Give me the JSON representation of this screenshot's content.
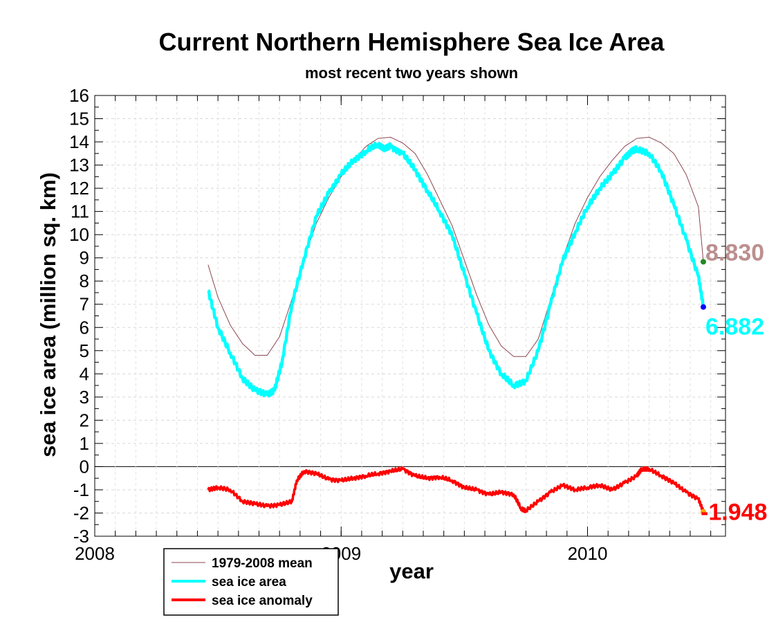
{
  "chart_data": {
    "type": "line",
    "title": "Current Northern Hemisphere Sea Ice Area",
    "subtitle": "most recent two years shown",
    "xlabel": "year",
    "ylabel": "sea ice area (million sq. km)",
    "xlim": [
      2008.0,
      2010.56
    ],
    "ylim": [
      -3,
      16
    ],
    "y_ticks": [
      -3,
      -2,
      -1,
      0,
      1,
      2,
      3,
      4,
      5,
      6,
      7,
      8,
      9,
      10,
      11,
      12,
      13,
      14,
      15,
      16
    ],
    "x_ticks": [
      {
        "value": 2008,
        "label": "2008"
      },
      {
        "value": 2009,
        "label": "2009"
      },
      {
        "value": 2010,
        "label": "2010"
      }
    ],
    "grid": true,
    "legend_position": "bottom-left",
    "series": [
      {
        "name": "1979-2008 mean",
        "color": "#8b4550",
        "x": [
          2008.46,
          2008.5,
          2008.55,
          2008.6,
          2008.65,
          2008.7,
          2008.75,
          2008.8,
          2008.85,
          2008.9,
          2008.95,
          2009.0,
          2009.05,
          2009.1,
          2009.15,
          2009.2,
          2009.25,
          2009.3,
          2009.35,
          2009.4,
          2009.45,
          2009.5,
          2009.55,
          2009.6,
          2009.65,
          2009.7,
          2009.75,
          2009.8,
          2009.85,
          2009.9,
          2009.95,
          2010.0,
          2010.05,
          2010.1,
          2010.15,
          2010.2,
          2010.25,
          2010.3,
          2010.35,
          2010.4,
          2010.45,
          2010.47
        ],
        "values": [
          8.7,
          7.3,
          6.1,
          5.3,
          4.8,
          4.8,
          5.6,
          7.2,
          9.0,
          10.5,
          11.6,
          12.5,
          13.2,
          13.8,
          14.15,
          14.2,
          13.95,
          13.5,
          12.6,
          11.5,
          10.4,
          8.9,
          7.4,
          6.1,
          5.2,
          4.75,
          4.75,
          5.5,
          7.2,
          9.0,
          10.5,
          11.6,
          12.5,
          13.2,
          13.8,
          14.15,
          14.2,
          13.95,
          13.5,
          12.6,
          11.2,
          8.83
        ]
      },
      {
        "name": "sea ice area",
        "color": "#00ffff",
        "x": [
          2008.46,
          2008.5,
          2008.55,
          2008.6,
          2008.65,
          2008.7,
          2008.73,
          2008.76,
          2008.8,
          2008.85,
          2008.9,
          2008.95,
          2009.0,
          2009.05,
          2009.1,
          2009.15,
          2009.18,
          2009.2,
          2009.25,
          2009.3,
          2009.35,
          2009.4,
          2009.45,
          2009.5,
          2009.55,
          2009.6,
          2009.65,
          2009.7,
          2009.75,
          2009.8,
          2009.85,
          2009.9,
          2009.95,
          2010.0,
          2010.05,
          2010.1,
          2010.15,
          2010.18,
          2010.2,
          2010.25,
          2010.3,
          2010.35,
          2010.4,
          2010.45,
          2010.47
        ],
        "values": [
          7.6,
          6.0,
          4.9,
          3.8,
          3.3,
          3.1,
          3.3,
          4.5,
          7.0,
          9.0,
          10.8,
          11.8,
          12.6,
          13.2,
          13.6,
          13.9,
          13.7,
          13.8,
          13.5,
          12.8,
          11.9,
          11.0,
          10.0,
          8.3,
          6.6,
          5.0,
          4.0,
          3.5,
          3.7,
          5.0,
          7.0,
          8.9,
          10.1,
          11.2,
          12.0,
          12.6,
          13.3,
          13.6,
          13.7,
          13.5,
          12.7,
          11.3,
          9.8,
          8.2,
          6.882
        ]
      },
      {
        "name": "sea ice anomaly",
        "color": "#ff0000",
        "x": [
          2008.46,
          2008.5,
          2008.55,
          2008.6,
          2008.65,
          2008.7,
          2008.75,
          2008.8,
          2008.82,
          2008.85,
          2008.9,
          2008.95,
          2009.0,
          2009.05,
          2009.1,
          2009.15,
          2009.2,
          2009.25,
          2009.3,
          2009.35,
          2009.4,
          2009.45,
          2009.5,
          2009.55,
          2009.6,
          2009.65,
          2009.7,
          2009.73,
          2009.75,
          2009.8,
          2009.85,
          2009.9,
          2009.95,
          2010.0,
          2010.05,
          2010.1,
          2010.15,
          2010.2,
          2010.22,
          2010.25,
          2010.3,
          2010.35,
          2010.4,
          2010.45,
          2010.47
        ],
        "values": [
          -1.0,
          -0.9,
          -1.0,
          -1.5,
          -1.6,
          -1.7,
          -1.65,
          -1.5,
          -0.6,
          -0.2,
          -0.3,
          -0.55,
          -0.6,
          -0.5,
          -0.4,
          -0.3,
          -0.2,
          -0.1,
          -0.4,
          -0.5,
          -0.45,
          -0.6,
          -0.9,
          -1.0,
          -1.2,
          -1.1,
          -1.2,
          -1.8,
          -1.9,
          -1.5,
          -1.1,
          -0.8,
          -1.0,
          -0.9,
          -0.8,
          -1.0,
          -0.7,
          -0.4,
          -0.1,
          -0.1,
          -0.4,
          -0.7,
          -1.1,
          -1.4,
          -1.948
        ]
      }
    ],
    "annotations": [
      {
        "text": "8.830",
        "value": 8.83,
        "color": "#bc8f8f"
      },
      {
        "text": "6.882",
        "value": 6.882,
        "color": "#00ffff"
      },
      {
        "text": "-1.948",
        "value": -1.948,
        "color": "#ff0000"
      }
    ],
    "end_markers": [
      {
        "series": "1979-2008 mean",
        "x": 2010.47,
        "y": 8.83,
        "color": "#228b22"
      },
      {
        "series": "sea ice area",
        "x": 2010.47,
        "y": 6.882,
        "color": "#0000ff"
      },
      {
        "series": "sea ice anomaly",
        "x": 2010.47,
        "y": -1.948,
        "color": "#ffa500"
      }
    ]
  }
}
